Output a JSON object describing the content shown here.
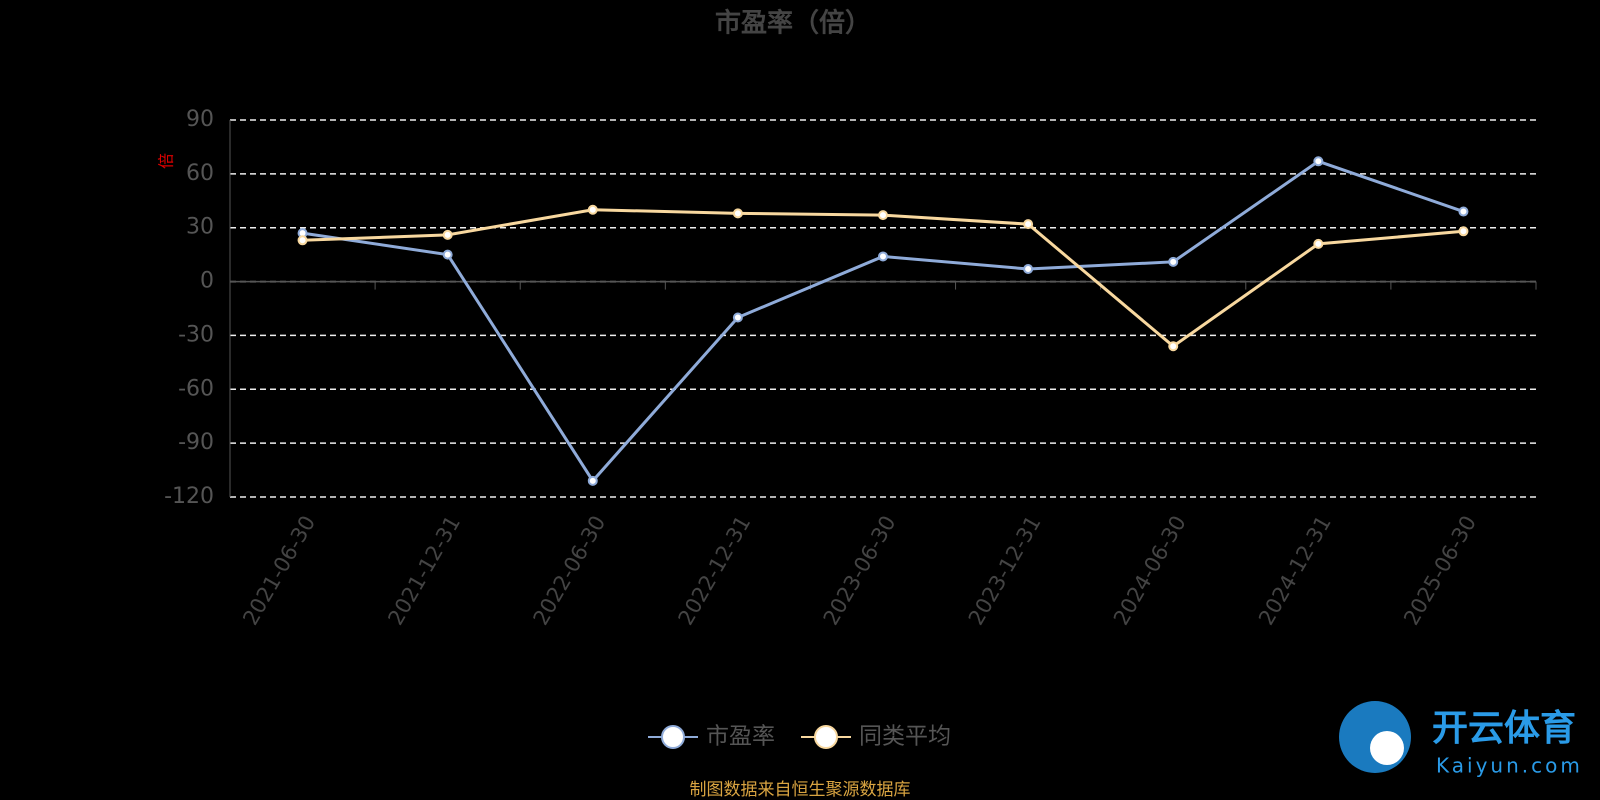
{
  "chart_data": {
    "type": "line",
    "title": "市盈率（倍）",
    "y_label": "倍",
    "categories": [
      "2021-06-30",
      "2021-12-31",
      "2022-06-30",
      "2022-12-31",
      "2023-06-30",
      "2023-12-31",
      "2024-06-30",
      "2024-12-31",
      "2025-06-30"
    ],
    "series": [
      {
        "name": "市盈率",
        "color": "#8fabd9",
        "values": [
          27,
          15,
          -111,
          -20,
          14,
          7,
          11,
          67,
          39
        ]
      },
      {
        "name": "同类平均",
        "color": "#f8d89f",
        "values": [
          23,
          26,
          40,
          38,
          37,
          32,
          -36,
          21,
          28
        ]
      }
    ],
    "ylim": [
      -120,
      90
    ],
    "yticks": [
      -120,
      -90,
      -60,
      -30,
      0,
      30,
      60,
      90
    ],
    "grid": true,
    "source": "制图数据来自恒生聚源数据库",
    "watermark": {
      "brand": "开云体育",
      "site": "Kaiyun.com"
    }
  }
}
